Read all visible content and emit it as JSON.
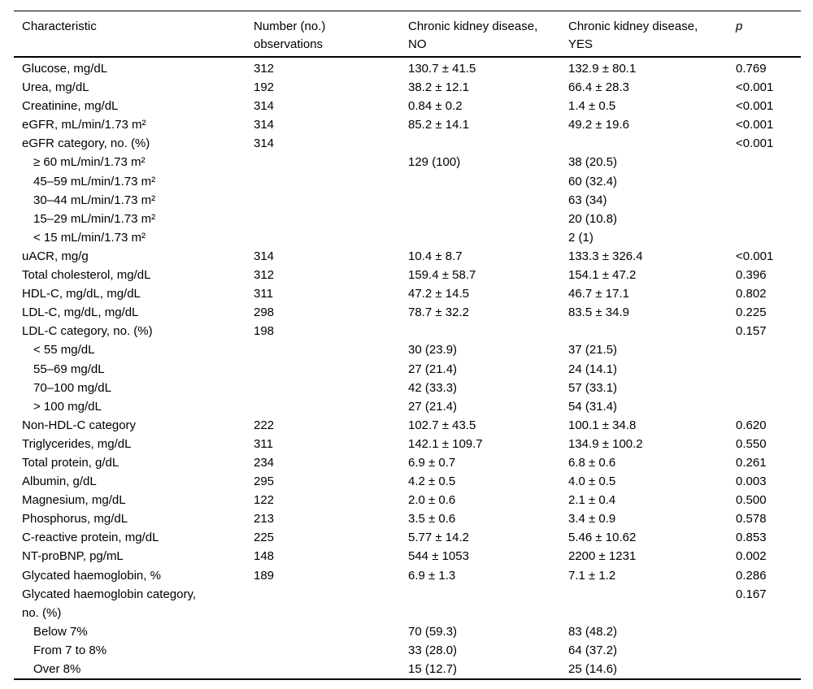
{
  "page": {
    "background_color": "#ffffff",
    "text_color": "#000000"
  },
  "table": {
    "columns": [
      {
        "key": "characteristic",
        "label": "Characteristic",
        "italic": false
      },
      {
        "key": "n-observations",
        "label": "Number (no.)\nobservations",
        "italic": false
      },
      {
        "key": "ckd-no",
        "label": "Chronic kidney disease,\nNO",
        "italic": false
      },
      {
        "key": "ckd-yes",
        "label": "Chronic kidney disease,\nYES",
        "italic": false
      },
      {
        "key": "p-value",
        "label": "p",
        "italic": true
      }
    ],
    "rows": [
      {
        "label": "Glucose, mg/dL",
        "indent": false,
        "n": "312",
        "no": "130.7 ± 41.5",
        "yes": "132.9 ± 80.1",
        "p": "0.769"
      },
      {
        "label": "Urea, mg/dL",
        "indent": false,
        "n": "192",
        "no": "38.2 ± 12.1",
        "yes": "66.4 ± 28.3",
        "p": "<0.001"
      },
      {
        "label": "Creatinine, mg/dL",
        "indent": false,
        "n": "314",
        "no": "0.84 ± 0.2",
        "yes": "1.4 ± 0.5",
        "p": "<0.001"
      },
      {
        "label": "eGFR, mL/min/1.73 m²",
        "indent": false,
        "n": "314",
        "no": "85.2 ± 14.1",
        "yes": "49.2 ± 19.6",
        "p": "<0.001"
      },
      {
        "label": "eGFR category, no. (%)",
        "indent": false,
        "n": "314",
        "no": "",
        "yes": "",
        "p": "<0.001"
      },
      {
        "label": "≥ 60 mL/min/1.73 m²",
        "indent": true,
        "n": "",
        "no": "129 (100)",
        "yes": "38 (20.5)",
        "p": ""
      },
      {
        "label": "45–59 mL/min/1.73 m²",
        "indent": true,
        "n": "",
        "no": "",
        "yes": "60 (32.4)",
        "p": ""
      },
      {
        "label": "30–44 mL/min/1.73 m²",
        "indent": true,
        "n": "",
        "no": "",
        "yes": "63 (34)",
        "p": ""
      },
      {
        "label": "15–29 mL/min/1.73 m²",
        "indent": true,
        "n": "",
        "no": "",
        "yes": "20 (10.8)",
        "p": ""
      },
      {
        "label": "< 15 mL/min/1.73 m²",
        "indent": true,
        "n": "",
        "no": "",
        "yes": "2 (1)",
        "p": ""
      },
      {
        "label": "uACR, mg/g",
        "indent": false,
        "n": "314",
        "no": "10.4 ± 8.7",
        "yes": "133.3 ± 326.4",
        "p": "<0.001"
      },
      {
        "label": "Total cholesterol, mg/dL",
        "indent": false,
        "n": "312",
        "no": "159.4 ± 58.7",
        "yes": "154.1 ± 47.2",
        "p": "0.396"
      },
      {
        "label": "HDL-C, mg/dL, mg/dL",
        "indent": false,
        "n": "311",
        "no": "47.2 ± 14.5",
        "yes": "46.7 ± 17.1",
        "p": "0.802"
      },
      {
        "label": "LDL-C, mg/dL, mg/dL",
        "indent": false,
        "n": "298",
        "no": "78.7 ± 32.2",
        "yes": "83.5 ± 34.9",
        "p": "0.225"
      },
      {
        "label": "LDL-C category, no. (%)",
        "indent": false,
        "n": "198",
        "no": "",
        "yes": "",
        "p": "0.157"
      },
      {
        "label": "< 55 mg/dL",
        "indent": true,
        "n": "",
        "no": "30 (23.9)",
        "yes": "37 (21.5)",
        "p": ""
      },
      {
        "label": "55–69 mg/dL",
        "indent": true,
        "n": "",
        "no": "27 (21.4)",
        "yes": "24 (14.1)",
        "p": ""
      },
      {
        "label": "70–100 mg/dL",
        "indent": true,
        "n": "",
        "no": "42 (33.3)",
        "yes": "57 (33.1)",
        "p": ""
      },
      {
        "label": "> 100 mg/dL",
        "indent": true,
        "n": "",
        "no": "27 (21.4)",
        "yes": "54 (31.4)",
        "p": ""
      },
      {
        "label": "Non-HDL-C category",
        "indent": false,
        "n": "222",
        "no": "102.7 ± 43.5",
        "yes": "100.1 ± 34.8",
        "p": "0.620"
      },
      {
        "label": "Triglycerides, mg/dL",
        "indent": false,
        "n": "311",
        "no": "142.1 ± 109.7",
        "yes": "134.9 ± 100.2",
        "p": "0.550"
      },
      {
        "label": "Total protein, g/dL",
        "indent": false,
        "n": "234",
        "no": "6.9 ± 0.7",
        "yes": "6.8 ± 0.6",
        "p": "0.261"
      },
      {
        "label": "Albumin, g/dL",
        "indent": false,
        "n": "295",
        "no": "4.2 ± 0.5",
        "yes": "4.0 ± 0.5",
        "p": "0.003"
      },
      {
        "label": "Magnesium, mg/dL",
        "indent": false,
        "n": "122",
        "no": "2.0 ± 0.6",
        "yes": "2.1 ± 0.4",
        "p": "0.500"
      },
      {
        "label": "Phosphorus, mg/dL",
        "indent": false,
        "n": "213",
        "no": "3.5 ± 0.6",
        "yes": "3.4 ± 0.9",
        "p": "0.578"
      },
      {
        "label": "C-reactive protein, mg/dL",
        "indent": false,
        "n": "225",
        "no": "5.77 ± 14.2",
        "yes": "5.46 ± 10.62",
        "p": "0.853"
      },
      {
        "label": "NT-proBNP, pg/mL",
        "indent": false,
        "n": "148",
        "no": "544 ± 1053",
        "yes": "2200 ± 1231",
        "p": "0.002"
      },
      {
        "label": "Glycated haemoglobin, %",
        "indent": false,
        "n": "189",
        "no": "6.9 ± 1.3",
        "yes": "7.1 ± 1.2",
        "p": "0.286"
      },
      {
        "label": "Glycated haemoglobin category,\nno. (%)",
        "indent": false,
        "n": "",
        "no": "",
        "yes": "",
        "p": "0.167"
      },
      {
        "label": "Below 7%",
        "indent": true,
        "n": "",
        "no": "70 (59.3)",
        "yes": "83 (48.2)",
        "p": ""
      },
      {
        "label": "From 7 to 8%",
        "indent": true,
        "n": "",
        "no": "33 (28.0)",
        "yes": "64 (37.2)",
        "p": ""
      },
      {
        "label": "Over 8%",
        "indent": true,
        "n": "",
        "no": "15 (12.7)",
        "yes": "25 (14.6)",
        "p": ""
      }
    ]
  }
}
